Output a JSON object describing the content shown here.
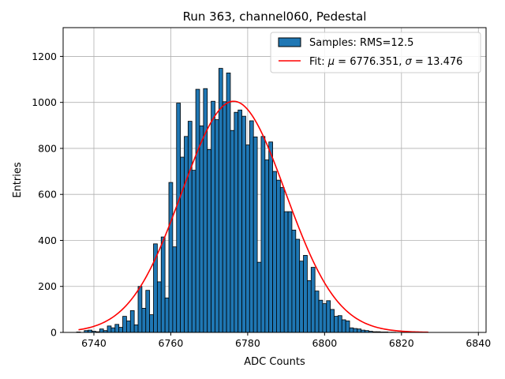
{
  "chart_data": {
    "type": "bar",
    "title": "Run 363, channel060, Pedestal",
    "xlabel": "ADC Counts",
    "ylabel": "Entries",
    "xlim": [
      6732,
      6842
    ],
    "ylim": [
      0,
      1325
    ],
    "xticks": [
      6740,
      6760,
      6780,
      6800,
      6820,
      6840
    ],
    "yticks": [
      0,
      200,
      400,
      600,
      800,
      1000,
      1200
    ],
    "grid": true,
    "legend_position": "top-right",
    "bin_width": 1,
    "colors": {
      "bars": "#1f77b4",
      "bar_edge": "#000000",
      "fit": "#ff0000",
      "grid": "#b0b0b0"
    },
    "histogram": {
      "name": "Samples: RMS=12.5",
      "bins": [
        {
          "x": 6736,
          "y": 2
        },
        {
          "x": 6737,
          "y": 0
        },
        {
          "x": 6738,
          "y": 8
        },
        {
          "x": 6739,
          "y": 10
        },
        {
          "x": 6740,
          "y": 5
        },
        {
          "x": 6741,
          "y": 3
        },
        {
          "x": 6742,
          "y": 15
        },
        {
          "x": 6743,
          "y": 8
        },
        {
          "x": 6744,
          "y": 28
        },
        {
          "x": 6745,
          "y": 20
        },
        {
          "x": 6746,
          "y": 35
        },
        {
          "x": 6747,
          "y": 22
        },
        {
          "x": 6748,
          "y": 70
        },
        {
          "x": 6749,
          "y": 50
        },
        {
          "x": 6750,
          "y": 95
        },
        {
          "x": 6751,
          "y": 33
        },
        {
          "x": 6752,
          "y": 200
        },
        {
          "x": 6753,
          "y": 105
        },
        {
          "x": 6754,
          "y": 183
        },
        {
          "x": 6755,
          "y": 77
        },
        {
          "x": 6756,
          "y": 385
        },
        {
          "x": 6757,
          "y": 220
        },
        {
          "x": 6758,
          "y": 415
        },
        {
          "x": 6759,
          "y": 150
        },
        {
          "x": 6760,
          "y": 652
        },
        {
          "x": 6761,
          "y": 372
        },
        {
          "x": 6762,
          "y": 997
        },
        {
          "x": 6763,
          "y": 762
        },
        {
          "x": 6764,
          "y": 852
        },
        {
          "x": 6765,
          "y": 918
        },
        {
          "x": 6766,
          "y": 705
        },
        {
          "x": 6767,
          "y": 1057
        },
        {
          "x": 6768,
          "y": 898
        },
        {
          "x": 6769,
          "y": 1060
        },
        {
          "x": 6770,
          "y": 795
        },
        {
          "x": 6771,
          "y": 1005
        },
        {
          "x": 6772,
          "y": 925
        },
        {
          "x": 6773,
          "y": 1148
        },
        {
          "x": 6774,
          "y": 1003
        },
        {
          "x": 6775,
          "y": 1128
        },
        {
          "x": 6776,
          "y": 878
        },
        {
          "x": 6777,
          "y": 957
        },
        {
          "x": 6778,
          "y": 967
        },
        {
          "x": 6779,
          "y": 940
        },
        {
          "x": 6780,
          "y": 815
        },
        {
          "x": 6781,
          "y": 920
        },
        {
          "x": 6782,
          "y": 850
        },
        {
          "x": 6783,
          "y": 305
        },
        {
          "x": 6784,
          "y": 852
        },
        {
          "x": 6785,
          "y": 750
        },
        {
          "x": 6786,
          "y": 828
        },
        {
          "x": 6787,
          "y": 700
        },
        {
          "x": 6788,
          "y": 662
        },
        {
          "x": 6789,
          "y": 630
        },
        {
          "x": 6790,
          "y": 525
        },
        {
          "x": 6791,
          "y": 525
        },
        {
          "x": 6792,
          "y": 445
        },
        {
          "x": 6793,
          "y": 405
        },
        {
          "x": 6794,
          "y": 310
        },
        {
          "x": 6795,
          "y": 335
        },
        {
          "x": 6796,
          "y": 225
        },
        {
          "x": 6797,
          "y": 283
        },
        {
          "x": 6798,
          "y": 180
        },
        {
          "x": 6799,
          "y": 140
        },
        {
          "x": 6800,
          "y": 125
        },
        {
          "x": 6801,
          "y": 138
        },
        {
          "x": 6802,
          "y": 100
        },
        {
          "x": 6803,
          "y": 70
        },
        {
          "x": 6804,
          "y": 73
        },
        {
          "x": 6805,
          "y": 55
        },
        {
          "x": 6806,
          "y": 50
        },
        {
          "x": 6807,
          "y": 20
        },
        {
          "x": 6808,
          "y": 17
        },
        {
          "x": 6809,
          "y": 15
        },
        {
          "x": 6810,
          "y": 10
        },
        {
          "x": 6811,
          "y": 8
        },
        {
          "x": 6812,
          "y": 5
        },
        {
          "x": 6813,
          "y": 3
        },
        {
          "x": 6814,
          "y": 3
        },
        {
          "x": 6815,
          "y": 2
        },
        {
          "x": 6816,
          "y": 2
        },
        {
          "x": 6817,
          "y": 1
        },
        {
          "x": 6818,
          "y": 1
        }
      ]
    },
    "fit": {
      "name": "Fit: μ = 6776.351, σ = 13.476",
      "legend_prefix": "Fit: ",
      "legend_mu_symbol": "μ",
      "legend_mu_text": " = 6776.351, ",
      "legend_sigma_symbol": "σ",
      "legend_sigma_text": " = 13.476",
      "mu": 6776.351,
      "sigma": 13.476,
      "amplitude": 1005,
      "x_range": [
        6736,
        6827
      ]
    }
  }
}
